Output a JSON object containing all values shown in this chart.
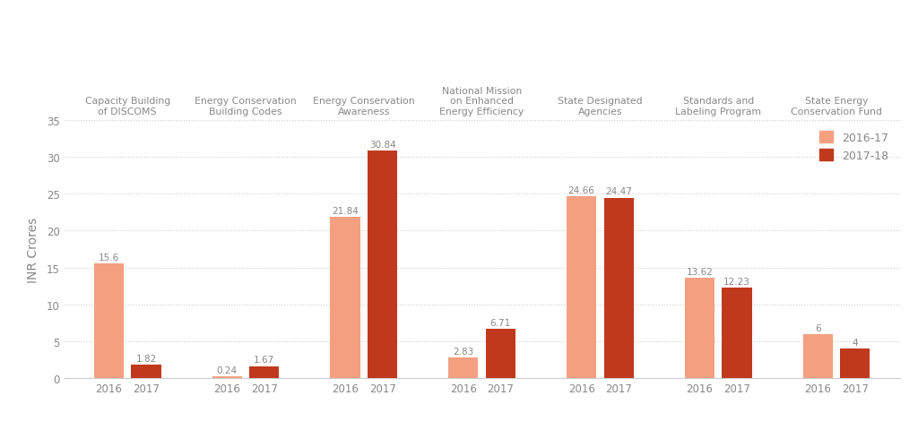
{
  "categories": [
    "Capacity Building\nof DISCOMS",
    "Energy Conservation\nBuilding Codes",
    "Energy Conservation\nAwareness",
    "National Mission\non Enhanced\nEnergy Efficiency",
    "State Designated\nAgencies",
    "Standards and\nLabeling Program",
    "State Energy\nConservation Fund"
  ],
  "values_2016": [
    15.6,
    0.24,
    21.84,
    2.83,
    24.66,
    13.62,
    6.0
  ],
  "values_2017": [
    1.82,
    1.67,
    30.84,
    6.71,
    24.47,
    12.23,
    4.0
  ],
  "color_2016": "#F4A080",
  "color_2017": "#C1391C",
  "ylabel": "INR Crores",
  "ylim": [
    0,
    35
  ],
  "yticks": [
    0,
    5,
    10,
    15,
    20,
    25,
    30,
    35
  ],
  "legend_2016": "2016-17",
  "legend_2017": "2017-18",
  "background_color": "#FFFFFF",
  "bar_width": 0.32,
  "value_labels_2016": [
    "15.6",
    "0.24",
    "21.84",
    "2.83",
    "24.66",
    "13.62",
    "6"
  ],
  "value_labels_2017": [
    "1.82",
    "1.67",
    "30.84",
    "6.71",
    "24.47",
    "12.23",
    "4"
  ],
  "label_color": "#888888",
  "grid_color": "#CCCCCC",
  "spine_color": "#CCCCCC"
}
